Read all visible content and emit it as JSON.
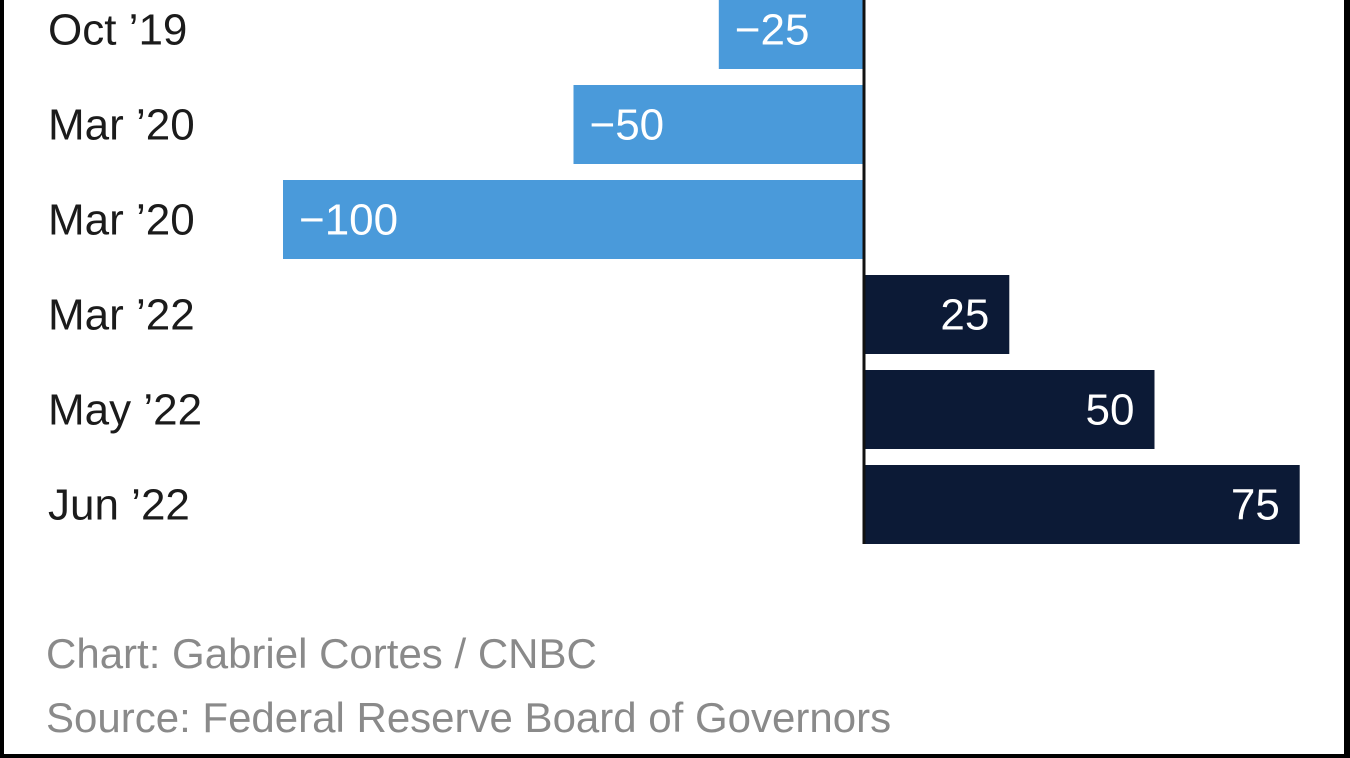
{
  "chart_data": {
    "type": "bar",
    "orientation": "horizontal",
    "categories": [
      "Oct ’19",
      "Mar ’20",
      "Mar ’20",
      "Mar ’22",
      "May ’22",
      "Jun ’22"
    ],
    "values": [
      -25,
      -50,
      -100,
      25,
      50,
      75
    ],
    "value_labels": [
      "−25",
      "−50",
      "−100",
      "25",
      "50",
      "75"
    ],
    "xlim": [
      -100,
      75
    ],
    "grid": false,
    "legend": "none",
    "colors": {
      "negative": "#4a9ada",
      "positive": "#0c1a36",
      "axis": "#111111",
      "category_text": "#1b1b1b",
      "footer_text": "#8a8a8a"
    }
  },
  "footer": {
    "credit": "Chart: Gabriel Cortes / CNBC",
    "source": "Source: Federal Reserve Board of Governors"
  }
}
